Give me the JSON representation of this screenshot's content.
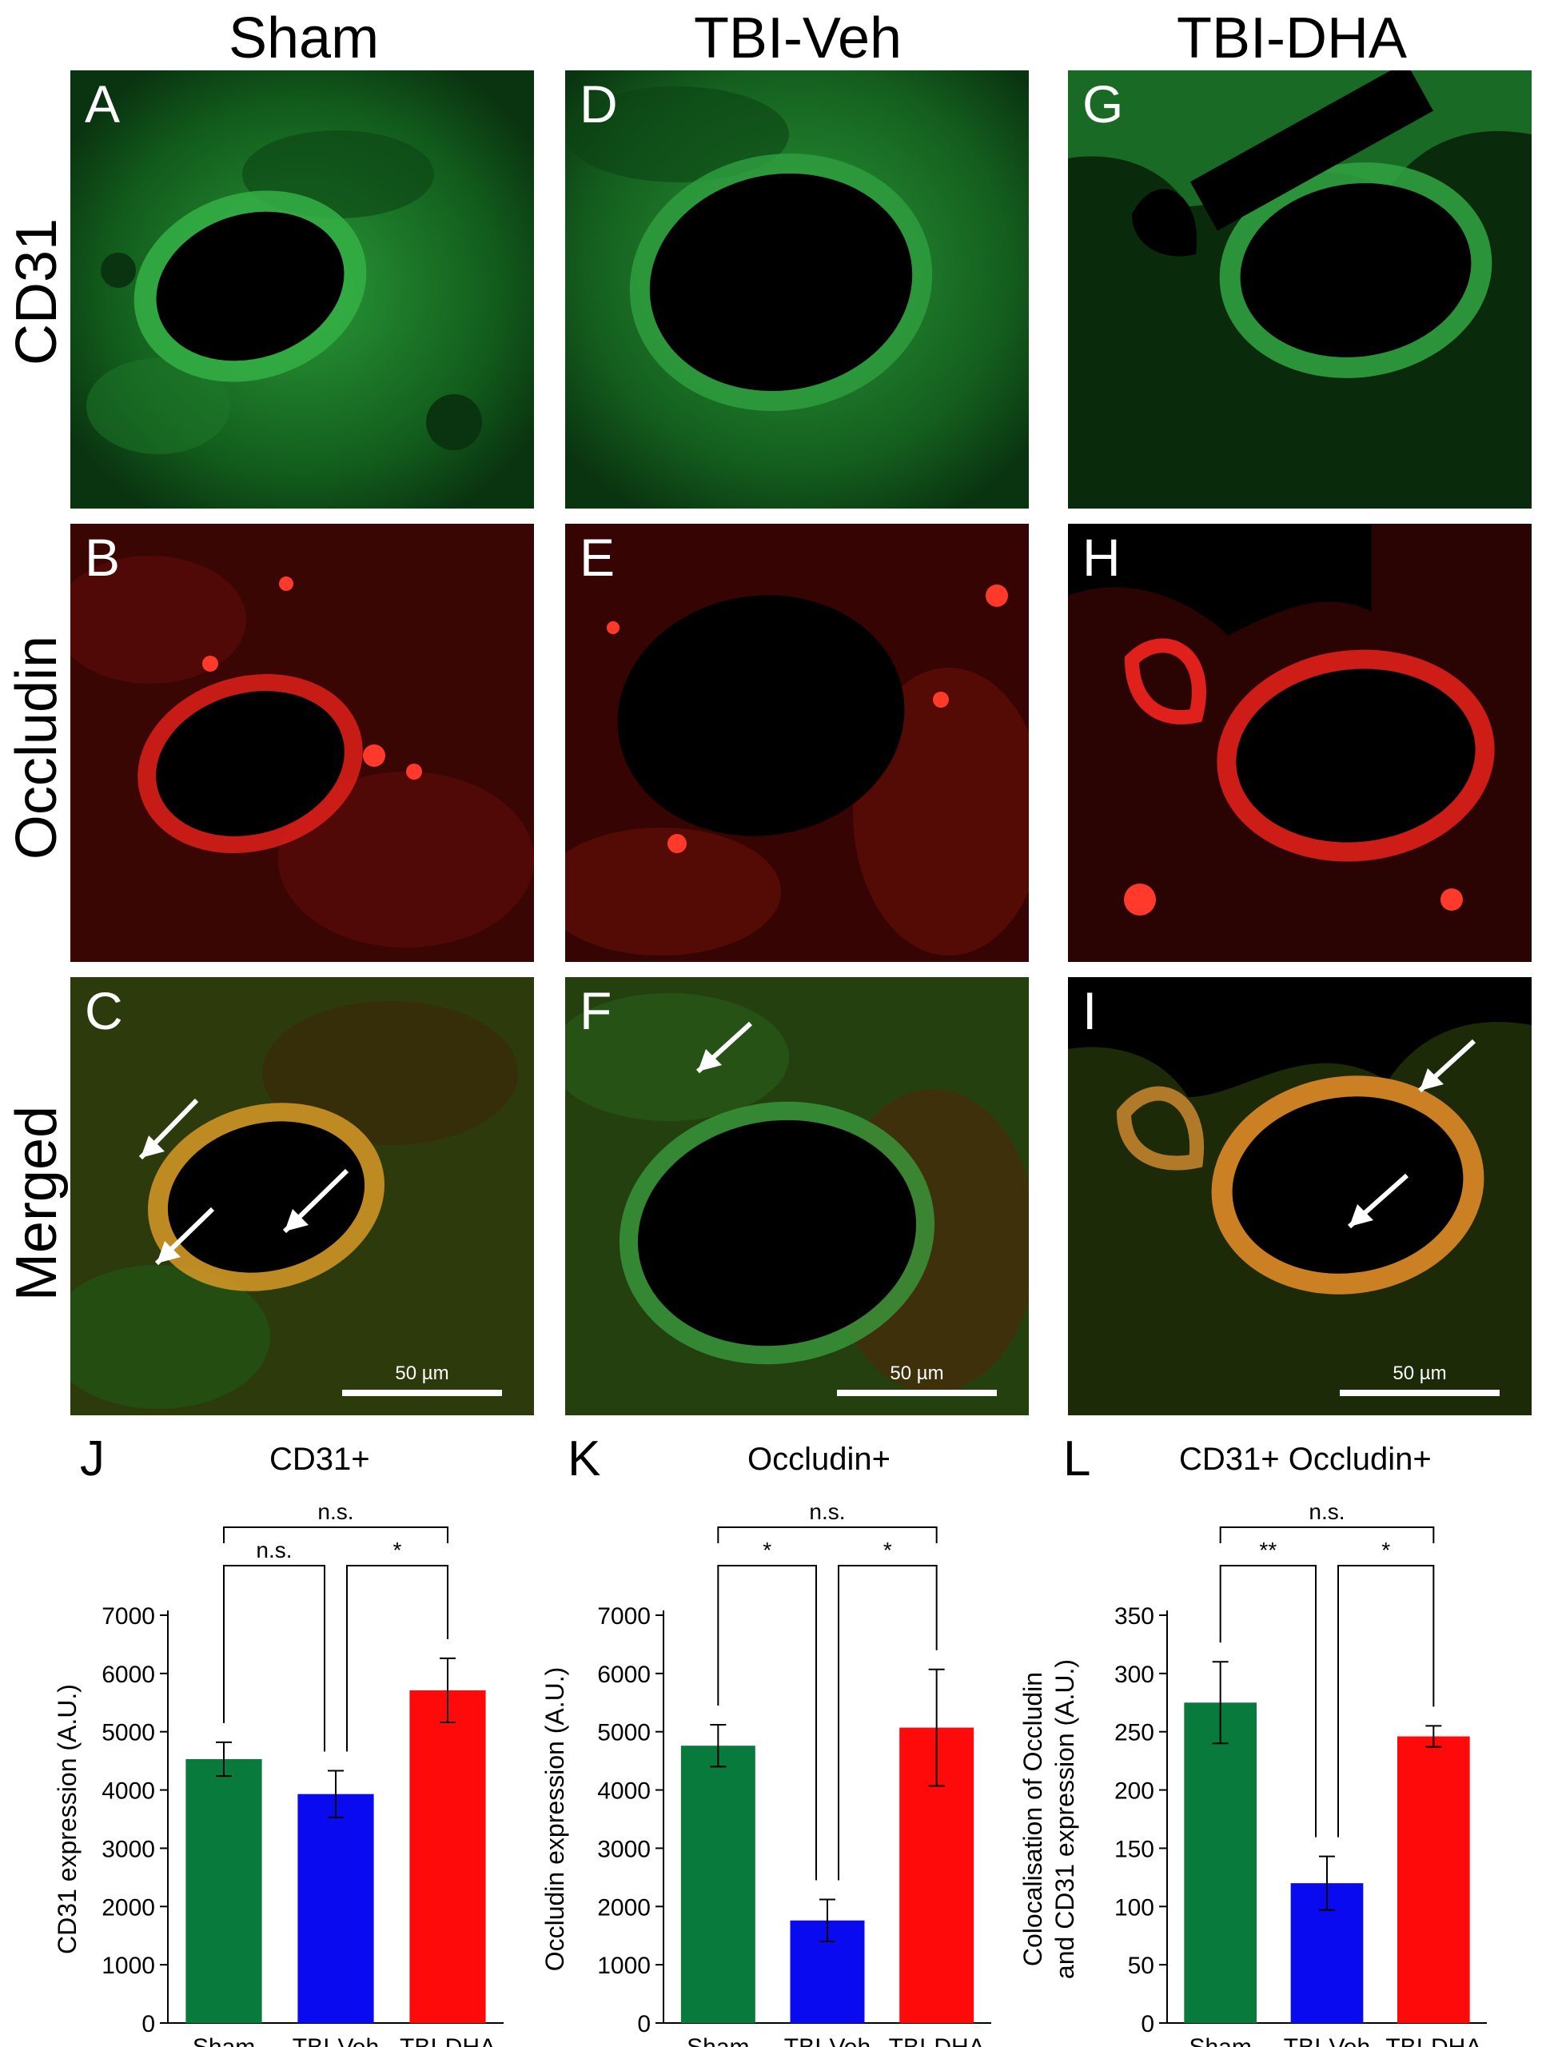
{
  "columns": [
    "Sham",
    "TBI-Veh",
    "TBI-DHA"
  ],
  "rows": [
    "CD31",
    "Occludin",
    "Merged"
  ],
  "panels": [
    {
      "label": "A",
      "row": 0,
      "col": 0
    },
    {
      "label": "B",
      "row": 1,
      "col": 0
    },
    {
      "label": "C",
      "row": 2,
      "col": 0
    },
    {
      "label": "D",
      "row": 0,
      "col": 1
    },
    {
      "label": "E",
      "row": 1,
      "col": 1
    },
    {
      "label": "F",
      "row": 2,
      "col": 1
    },
    {
      "label": "G",
      "row": 0,
      "col": 2
    },
    {
      "label": "H",
      "row": 1,
      "col": 2
    },
    {
      "label": "I",
      "row": 2,
      "col": 2
    }
  ],
  "scale_bar_label": "50 µm",
  "colors": {
    "cd31_green": "#1e8a2e",
    "occludin_red": "#e0201a",
    "merged_orange": "#e07a20",
    "arrow": "#ffffff",
    "bar_sham": "#087a3c",
    "bar_tbi_veh": "#0a0af0",
    "bar_tbi_dha": "#ff0a0a"
  },
  "chart_data": [
    {
      "panel": "J",
      "type": "bar",
      "title": "CD31+",
      "ylabel": "CD31 expression (A.U.)",
      "categories": [
        "Sham",
        "TBI-Veh",
        "TBI-DHA"
      ],
      "values": [
        4530,
        3930,
        5710
      ],
      "errors": [
        290,
        400,
        550
      ],
      "ylim": [
        0,
        7000
      ],
      "yticks": [
        0,
        1000,
        2000,
        3000,
        4000,
        5000,
        6000,
        7000
      ],
      "significance": [
        {
          "from": 0,
          "to": 2,
          "label": "n.s."
        },
        {
          "from": 0,
          "to": 1,
          "label": "n.s."
        },
        {
          "from": 1,
          "to": 2,
          "label": "*"
        }
      ]
    },
    {
      "panel": "K",
      "type": "bar",
      "title": "Occludin+",
      "ylabel": "Occludin expression (A.U.)",
      "categories": [
        "Sham",
        "TBI-Veh",
        "TBI-DHA"
      ],
      "values": [
        4760,
        1760,
        5070
      ],
      "errors": [
        360,
        360,
        1000
      ],
      "ylim": [
        0,
        7000
      ],
      "yticks": [
        0,
        1000,
        2000,
        3000,
        4000,
        5000,
        6000,
        7000
      ],
      "significance": [
        {
          "from": 0,
          "to": 2,
          "label": "n.s."
        },
        {
          "from": 0,
          "to": 1,
          "label": "*"
        },
        {
          "from": 1,
          "to": 2,
          "label": "*"
        }
      ]
    },
    {
      "panel": "L",
      "type": "bar",
      "title": "CD31+ Occludin+",
      "ylabel": "Colocalisation of Occludin and CD31 expression (A.U.)",
      "ylabel_lines": [
        "Colocalisation of Occludin",
        "and CD31 expression (A.U.)"
      ],
      "categories": [
        "Sham",
        "TBI-Veh",
        "TBI-DHA"
      ],
      "values": [
        275,
        120,
        246
      ],
      "errors": [
        35,
        23,
        9
      ],
      "ylim": [
        0,
        350
      ],
      "yticks": [
        0,
        50,
        100,
        150,
        200,
        250,
        300,
        350
      ],
      "significance": [
        {
          "from": 0,
          "to": 2,
          "label": "n.s."
        },
        {
          "from": 0,
          "to": 1,
          "label": "**"
        },
        {
          "from": 1,
          "to": 2,
          "label": "*"
        }
      ]
    }
  ]
}
